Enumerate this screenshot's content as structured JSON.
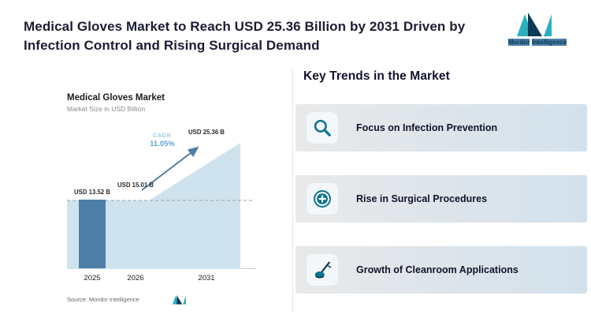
{
  "header": {
    "title": "Medical Gloves Market to Reach USD 25.36 Billion by 2031 Driven by Infection Control and Rising Surgical Demand",
    "logo": {
      "primary": "Mordor",
      "secondary": "Intelligence"
    }
  },
  "chart": {
    "source": "Source: Mordor Intelligence"
  },
  "chart_data": {
    "type": "bar",
    "title": "Medical Gloves Market",
    "subtitle": "Market Size in USD Billion",
    "categories": [
      "2025",
      "2026",
      "2031"
    ],
    "values": [
      13.52,
      15.01,
      25.36
    ],
    "value_labels": [
      "USD 13.52 B",
      "USD 15.01 B",
      "USD 25.36 B"
    ],
    "unit": "USD Billion",
    "cagr_label": "CAGR",
    "cagr_value": "11.05%",
    "ylim": [
      0,
      28
    ],
    "grid": false,
    "legend": false,
    "bar_color": "#4d7ea8",
    "area_color": "#cfe3ee"
  },
  "trends": {
    "heading": "Key Trends in the Market",
    "items": [
      {
        "label": "Focus on Infection Prevention",
        "icon": "magnifier-icon"
      },
      {
        "label": "Rise in Surgical Procedures",
        "icon": "medical-cross-icon"
      },
      {
        "label": "Growth of Cleanroom Applications",
        "icon": "cleaning-mop-icon"
      }
    ]
  },
  "colors": {
    "headline": "#1c1c34",
    "bar_blue": "#4d7ea8",
    "area_blue": "#cfe3ee",
    "cagr_blue": "#5fa7d3",
    "icon_teal": "#0e7490",
    "brand_teal": "#2ab0bf",
    "brand_navy": "#0a3a55",
    "card_gradient_start": "#e9e9e9",
    "card_gradient_end": "#d2e1ec"
  }
}
